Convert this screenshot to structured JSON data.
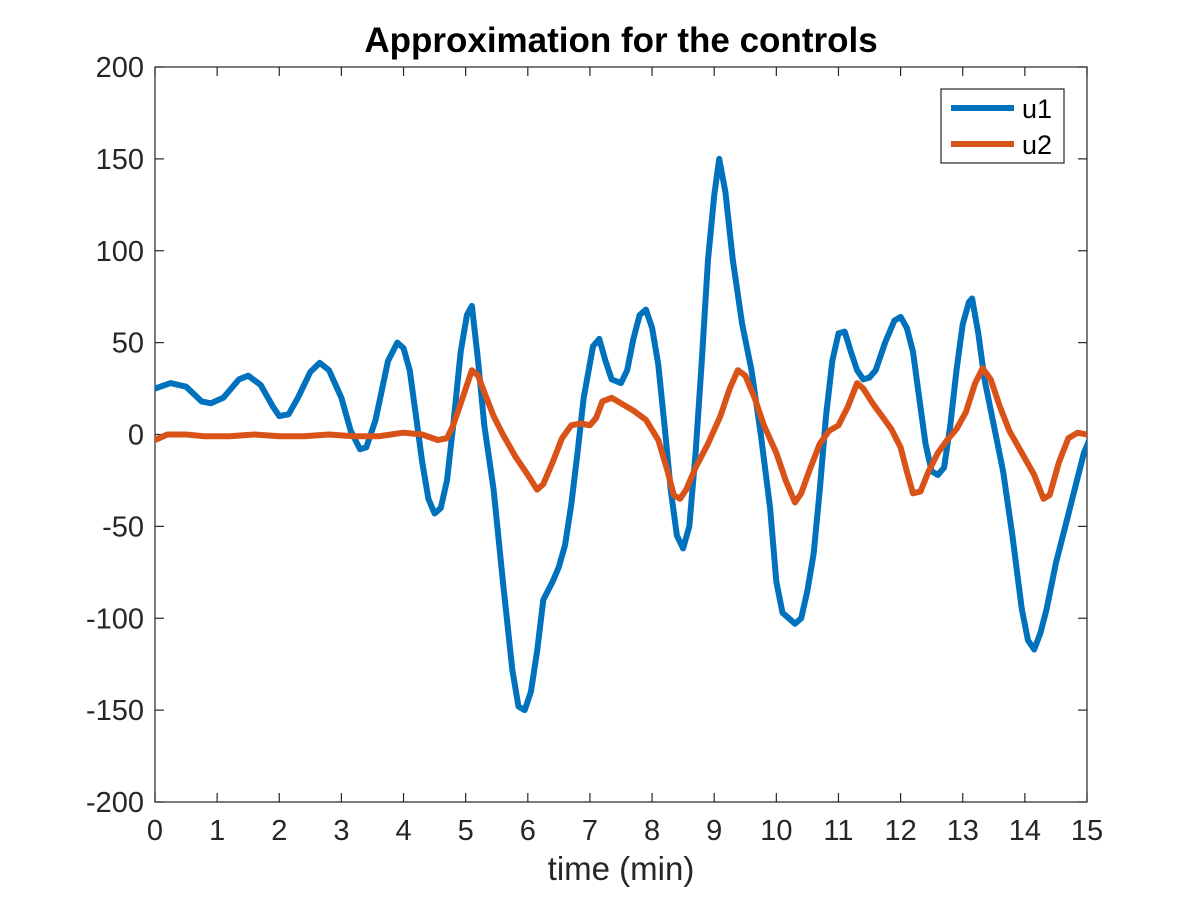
{
  "chart_data": {
    "type": "line",
    "title": "Approximation for the controls",
    "xlabel": "time (min)",
    "ylabel": "",
    "xlim": [
      0,
      15
    ],
    "ylim": [
      -200,
      200
    ],
    "xticks": [
      "0",
      "1",
      "2",
      "3",
      "4",
      "5",
      "6",
      "7",
      "8",
      "9",
      "10",
      "11",
      "12",
      "13",
      "14",
      "15"
    ],
    "yticks": [
      "200",
      "150",
      "100",
      "50",
      "0",
      "-50",
      "-100",
      "-150",
      "-200"
    ],
    "grid": false,
    "legend_position": "top-right",
    "series": [
      {
        "name": "u1",
        "color": "#0072BD",
        "points": [
          [
            0,
            25
          ],
          [
            0.25,
            28
          ],
          [
            0.5,
            26
          ],
          [
            0.75,
            18
          ],
          [
            0.9,
            17
          ],
          [
            1.1,
            20
          ],
          [
            1.35,
            30
          ],
          [
            1.5,
            32
          ],
          [
            1.7,
            27
          ],
          [
            1.9,
            15
          ],
          [
            2.0,
            10
          ],
          [
            2.15,
            11
          ],
          [
            2.3,
            20
          ],
          [
            2.5,
            34
          ],
          [
            2.65,
            39
          ],
          [
            2.8,
            35
          ],
          [
            3.0,
            20
          ],
          [
            3.15,
            2
          ],
          [
            3.3,
            -8
          ],
          [
            3.4,
            -7
          ],
          [
            3.55,
            8
          ],
          [
            3.75,
            40
          ],
          [
            3.9,
            50
          ],
          [
            4.0,
            47
          ],
          [
            4.1,
            35
          ],
          [
            4.2,
            10
          ],
          [
            4.3,
            -15
          ],
          [
            4.4,
            -35
          ],
          [
            4.5,
            -43
          ],
          [
            4.6,
            -40
          ],
          [
            4.7,
            -25
          ],
          [
            4.8,
            5
          ],
          [
            4.92,
            45
          ],
          [
            5.02,
            65
          ],
          [
            5.1,
            70
          ],
          [
            5.2,
            40
          ],
          [
            5.3,
            5
          ],
          [
            5.45,
            -30
          ],
          [
            5.6,
            -80
          ],
          [
            5.75,
            -128
          ],
          [
            5.85,
            -148
          ],
          [
            5.95,
            -150
          ],
          [
            6.05,
            -140
          ],
          [
            6.15,
            -118
          ],
          [
            6.25,
            -90
          ],
          [
            6.4,
            -80
          ],
          [
            6.5,
            -72
          ],
          [
            6.6,
            -60
          ],
          [
            6.7,
            -38
          ],
          [
            6.8,
            -10
          ],
          [
            6.9,
            20
          ],
          [
            7.05,
            48
          ],
          [
            7.15,
            52
          ],
          [
            7.25,
            40
          ],
          [
            7.35,
            30
          ],
          [
            7.5,
            28
          ],
          [
            7.6,
            35
          ],
          [
            7.7,
            52
          ],
          [
            7.8,
            65
          ],
          [
            7.9,
            68
          ],
          [
            8.0,
            58
          ],
          [
            8.1,
            38
          ],
          [
            8.2,
            5
          ],
          [
            8.3,
            -30
          ],
          [
            8.4,
            -55
          ],
          [
            8.5,
            -62
          ],
          [
            8.6,
            -50
          ],
          [
            8.7,
            -10
          ],
          [
            8.8,
            40
          ],
          [
            8.9,
            95
          ],
          [
            9.0,
            130
          ],
          [
            9.08,
            150
          ],
          [
            9.18,
            132
          ],
          [
            9.3,
            95
          ],
          [
            9.45,
            60
          ],
          [
            9.6,
            35
          ],
          [
            9.75,
            0
          ],
          [
            9.9,
            -40
          ],
          [
            10.0,
            -80
          ],
          [
            10.1,
            -97
          ],
          [
            10.2,
            -100
          ],
          [
            10.3,
            -103
          ],
          [
            10.4,
            -100
          ],
          [
            10.5,
            -85
          ],
          [
            10.6,
            -65
          ],
          [
            10.7,
            -30
          ],
          [
            10.8,
            10
          ],
          [
            10.9,
            40
          ],
          [
            11.0,
            55
          ],
          [
            11.1,
            56
          ],
          [
            11.2,
            45
          ],
          [
            11.3,
            35
          ],
          [
            11.4,
            30
          ],
          [
            11.5,
            31
          ],
          [
            11.6,
            35
          ],
          [
            11.75,
            50
          ],
          [
            11.9,
            62
          ],
          [
            12.0,
            64
          ],
          [
            12.1,
            58
          ],
          [
            12.2,
            45
          ],
          [
            12.3,
            20
          ],
          [
            12.4,
            -5
          ],
          [
            12.5,
            -20
          ],
          [
            12.6,
            -22
          ],
          [
            12.7,
            -18
          ],
          [
            12.8,
            5
          ],
          [
            12.9,
            35
          ],
          [
            13.0,
            60
          ],
          [
            13.1,
            72
          ],
          [
            13.15,
            74
          ],
          [
            13.25,
            55
          ],
          [
            13.35,
            30
          ],
          [
            13.5,
            5
          ],
          [
            13.65,
            -20
          ],
          [
            13.8,
            -55
          ],
          [
            13.95,
            -95
          ],
          [
            14.05,
            -112
          ],
          [
            14.15,
            -117
          ],
          [
            14.25,
            -108
          ],
          [
            14.35,
            -95
          ],
          [
            14.5,
            -70
          ],
          [
            14.65,
            -50
          ],
          [
            14.8,
            -30
          ],
          [
            14.95,
            -10
          ],
          [
            15.05,
            -2
          ],
          [
            15.2,
            0
          ]
        ]
      },
      {
        "name": "u2",
        "color": "#D95319",
        "points": [
          [
            0,
            -3
          ],
          [
            0.2,
            0
          ],
          [
            0.5,
            0
          ],
          [
            0.8,
            -1
          ],
          [
            1.2,
            -1
          ],
          [
            1.6,
            0
          ],
          [
            2.0,
            -1
          ],
          [
            2.4,
            -1
          ],
          [
            2.8,
            0
          ],
          [
            3.2,
            -1
          ],
          [
            3.6,
            -1
          ],
          [
            4.0,
            1
          ],
          [
            4.3,
            0
          ],
          [
            4.55,
            -3
          ],
          [
            4.7,
            -2
          ],
          [
            4.8,
            5
          ],
          [
            4.95,
            20
          ],
          [
            5.1,
            35
          ],
          [
            5.2,
            32
          ],
          [
            5.3,
            23
          ],
          [
            5.45,
            10
          ],
          [
            5.6,
            0
          ],
          [
            5.8,
            -12
          ],
          [
            6.0,
            -22
          ],
          [
            6.15,
            -30
          ],
          [
            6.25,
            -27
          ],
          [
            6.4,
            -15
          ],
          [
            6.55,
            -2
          ],
          [
            6.7,
            5
          ],
          [
            6.85,
            6
          ],
          [
            7.0,
            5
          ],
          [
            7.1,
            9
          ],
          [
            7.2,
            18
          ],
          [
            7.35,
            20
          ],
          [
            7.5,
            17
          ],
          [
            7.7,
            13
          ],
          [
            7.9,
            8
          ],
          [
            8.1,
            -3
          ],
          [
            8.25,
            -20
          ],
          [
            8.35,
            -33
          ],
          [
            8.45,
            -35
          ],
          [
            8.55,
            -30
          ],
          [
            8.7,
            -18
          ],
          [
            8.9,
            -5
          ],
          [
            9.1,
            10
          ],
          [
            9.25,
            25
          ],
          [
            9.38,
            35
          ],
          [
            9.5,
            32
          ],
          [
            9.65,
            20
          ],
          [
            9.8,
            5
          ],
          [
            10.0,
            -10
          ],
          [
            10.15,
            -25
          ],
          [
            10.3,
            -37
          ],
          [
            10.4,
            -32
          ],
          [
            10.55,
            -18
          ],
          [
            10.7,
            -5
          ],
          [
            10.85,
            2
          ],
          [
            11.0,
            5
          ],
          [
            11.15,
            15
          ],
          [
            11.3,
            28
          ],
          [
            11.4,
            25
          ],
          [
            11.55,
            17
          ],
          [
            11.7,
            10
          ],
          [
            11.85,
            3
          ],
          [
            12.0,
            -7
          ],
          [
            12.1,
            -20
          ],
          [
            12.2,
            -32
          ],
          [
            12.32,
            -31
          ],
          [
            12.45,
            -20
          ],
          [
            12.6,
            -10
          ],
          [
            12.75,
            -3
          ],
          [
            12.9,
            3
          ],
          [
            13.05,
            12
          ],
          [
            13.2,
            28
          ],
          [
            13.32,
            36
          ],
          [
            13.45,
            30
          ],
          [
            13.6,
            15
          ],
          [
            13.75,
            2
          ],
          [
            13.95,
            -10
          ],
          [
            14.15,
            -22
          ],
          [
            14.3,
            -35
          ],
          [
            14.4,
            -33
          ],
          [
            14.55,
            -15
          ],
          [
            14.7,
            -2
          ],
          [
            14.85,
            1
          ],
          [
            15.0,
            0
          ],
          [
            15.2,
            0
          ]
        ]
      }
    ]
  }
}
